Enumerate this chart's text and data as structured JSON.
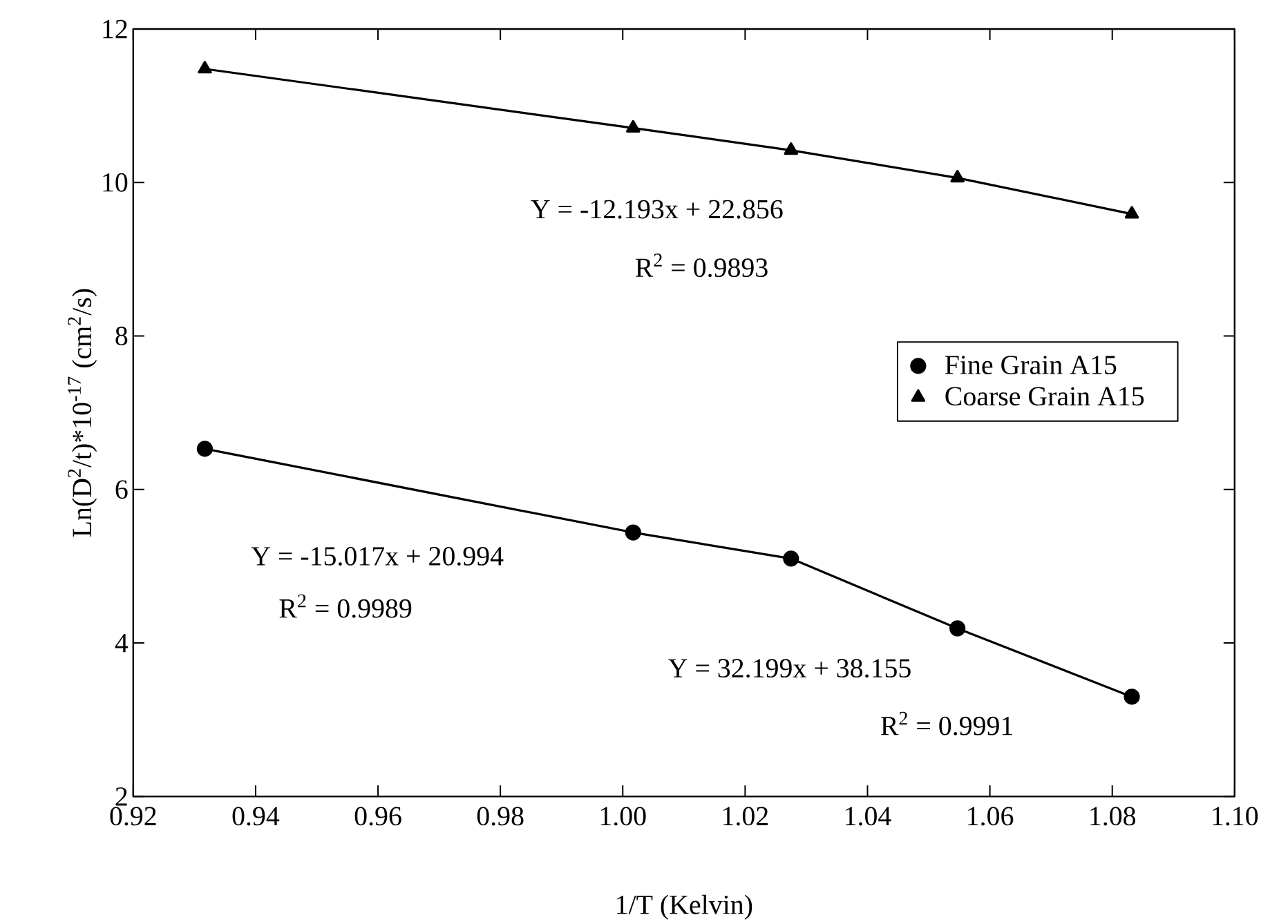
{
  "chart_data": {
    "type": "line",
    "xlabel": "1/T (Kelvin)",
    "ylabel": "Ln(D$^{2}$/t)*10$^{-17}$ (cm$^{2}$/s)",
    "xlim": [
      0.92,
      1.1
    ],
    "ylim": [
      2,
      12
    ],
    "xticks": [
      {
        "value": 0.92,
        "label": "0.92"
      },
      {
        "value": 0.94,
        "label": "0.94"
      },
      {
        "value": 0.96,
        "label": "0.96"
      },
      {
        "value": 0.98,
        "label": "0.98"
      },
      {
        "value": 1.0,
        "label": "1.00"
      },
      {
        "value": 1.02,
        "label": "1.02"
      },
      {
        "value": 1.04,
        "label": "1.04"
      },
      {
        "value": 1.06,
        "label": "1.06"
      },
      {
        "value": 1.08,
        "label": "1.08"
      },
      {
        "value": 1.1,
        "label": "1.10"
      }
    ],
    "yticks": [
      2,
      4,
      6,
      8,
      10,
      12
    ],
    "series": [
      {
        "name": "Fine Grain A15",
        "color": "#000000",
        "marker": "circle",
        "line_style": "solid",
        "x": [
          0.9317,
          1.0017,
          1.0275,
          1.0547,
          1.0832
        ],
        "values": [
          6.53,
          5.44,
          5.1,
          4.19,
          3.3
        ]
      },
      {
        "name": "Coarse Grain A15",
        "color": "#000000",
        "marker": "triangle",
        "line_style": "solid",
        "x": [
          0.9317,
          1.0017,
          1.0275,
          1.0547,
          1.0832
        ],
        "values": [
          11.48,
          10.71,
          10.42,
          10.06,
          9.59
        ]
      }
    ],
    "annotations": [
      "Y = -12.193x + 22.856",
      "R$^{2}$ = 0.9893",
      "Y = -15.017x + 20.994",
      "R$^{2}$ = 0.9989",
      "Y = 32.199x + 38.155",
      "R$^{2}$ = 0.9991"
    ],
    "legend": "right",
    "grid": false
  }
}
